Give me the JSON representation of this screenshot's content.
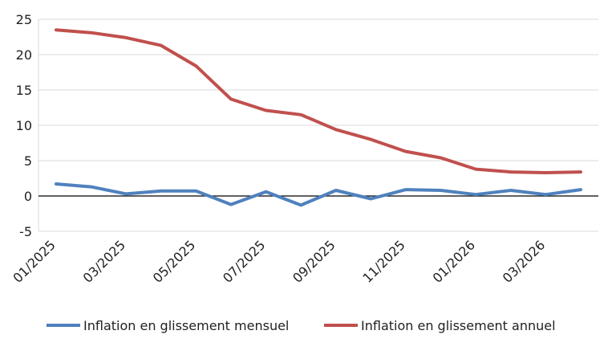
{
  "chart_data": {
    "type": "line",
    "title": "",
    "xlabel": "",
    "ylabel": "",
    "categories": [
      "01/2025",
      "02/2025",
      "03/2025",
      "04/2025",
      "05/2025",
      "06/2025",
      "07/2025",
      "08/2025",
      "09/2025",
      "10/2025",
      "11/2025",
      "12/2025",
      "01/2026",
      "02/2026",
      "03/2026",
      "04/2026"
    ],
    "x_tick_labels": [
      "01/2025",
      "03/2025",
      "05/2025",
      "07/2025",
      "09/2025",
      "11/2025",
      "01/2026",
      "03/2026"
    ],
    "y_ticks": [
      "-5",
      "0",
      "5",
      "10",
      "15",
      "20",
      "25"
    ],
    "ylim": [
      -5,
      25
    ],
    "grid": "horizontal",
    "legend_position": "bottom",
    "series": [
      {
        "name": "Inflation en glissement mensuel",
        "color": "#4F81BD",
        "values": [
          1.7,
          1.3,
          0.3,
          0.7,
          0.7,
          -1.2,
          0.6,
          -1.3,
          0.8,
          -0.4,
          0.9,
          0.8,
          0.2,
          0.8,
          0.2,
          0.9
        ]
      },
      {
        "name": "Inflation en glissement annuel",
        "color": "#C0504D",
        "values": [
          23.5,
          23.1,
          22.4,
          21.3,
          18.4,
          13.7,
          12.1,
          11.5,
          9.4,
          8.0,
          6.3,
          5.4,
          3.8,
          3.4,
          3.3,
          3.4
        ]
      }
    ]
  }
}
